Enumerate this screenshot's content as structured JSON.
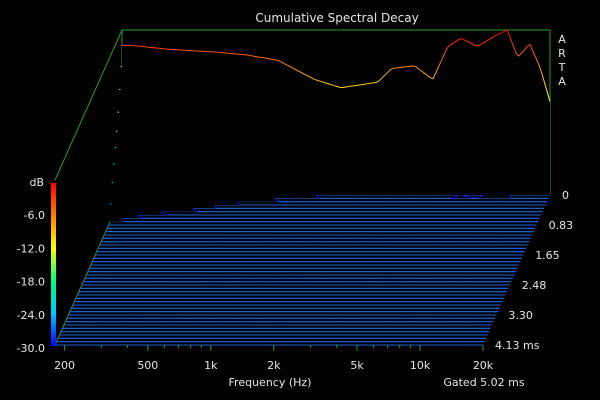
{
  "chart_data": {
    "type": "waterfall",
    "title": "Cumulative Spectral Decay",
    "brand_label": "ARTA",
    "xlabel": "Frequency (Hz)",
    "x_scale": "log",
    "x_ticks": [
      {
        "value": 200,
        "label": "200"
      },
      {
        "value": 500,
        "label": "500"
      },
      {
        "value": 1000,
        "label": "1k"
      },
      {
        "value": 2000,
        "label": "2k"
      },
      {
        "value": 5000,
        "label": "5k"
      },
      {
        "value": 10000,
        "label": "10k"
      },
      {
        "value": 20000,
        "label": "20k"
      }
    ],
    "xlim": [
      180,
      20000
    ],
    "z_label": "dB",
    "z_ticks": [
      "-6.0",
      "-12.0",
      "-18.0",
      "-24.0",
      "-30.0"
    ],
    "zlim": [
      -30,
      0
    ],
    "time_unit": "ms",
    "time_ticks": [
      "0",
      "0.83",
      "1.65",
      "2.48",
      "3.30",
      "4.13"
    ],
    "time_range": [
      0,
      4.13
    ],
    "gate_label": "Gated 5.02 ms",
    "colors": {
      "background": "#000000",
      "frame": "#2a9a2a",
      "floor": "#1f5fd6",
      "text": "#e6e6e6"
    },
    "colorbar": [
      "#0000ff",
      "#00c8ff",
      "#00ff80",
      "#ffff00",
      "#ff8000",
      "#ff0000"
    ],
    "slice_count": 46,
    "initial_response": [
      {
        "f": 200,
        "db": -2.8
      },
      {
        "f": 300,
        "db": -3.5
      },
      {
        "f": 500,
        "db": -4.0
      },
      {
        "f": 700,
        "db": -4.5
      },
      {
        "f": 1000,
        "db": -5.5
      },
      {
        "f": 1500,
        "db": -9.0
      },
      {
        "f": 2000,
        "db": -10.5
      },
      {
        "f": 3000,
        "db": -9.5
      },
      {
        "f": 3500,
        "db": -7.0
      },
      {
        "f": 4500,
        "db": -6.5
      },
      {
        "f": 5500,
        "db": -9.0
      },
      {
        "f": 6500,
        "db": -3.0
      },
      {
        "f": 7500,
        "db": -1.5
      },
      {
        "f": 9000,
        "db": -3.0
      },
      {
        "f": 11000,
        "db": -1.0
      },
      {
        "f": 12500,
        "db": 0.0
      },
      {
        "f": 14000,
        "db": -5.0
      },
      {
        "f": 16000,
        "db": -2.5
      },
      {
        "f": 18000,
        "db": -7.0
      },
      {
        "f": 20000,
        "db": -13.0
      }
    ]
  }
}
